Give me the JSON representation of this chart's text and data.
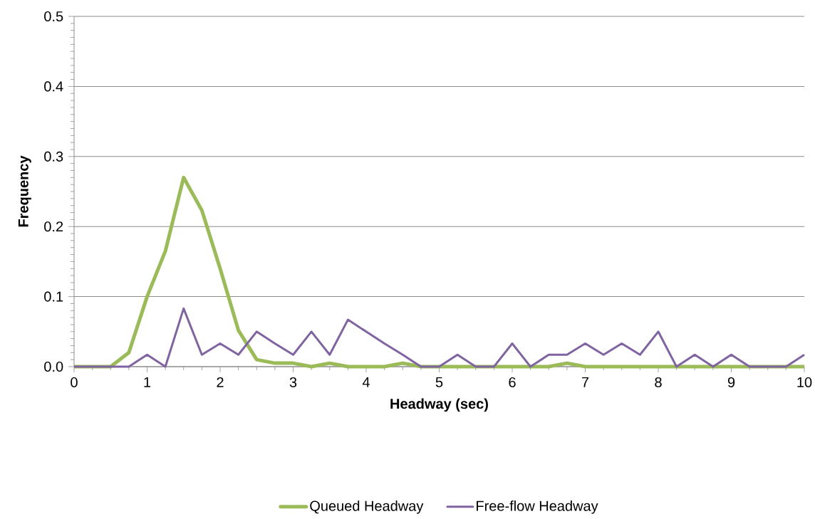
{
  "chart_data": {
    "type": "line",
    "xlabel": "Headway (sec)",
    "ylabel": "Frequency",
    "x": [
      0,
      0.25,
      0.5,
      0.75,
      1,
      1.25,
      1.5,
      1.75,
      2,
      2.25,
      2.5,
      2.75,
      3,
      3.25,
      3.5,
      3.75,
      4,
      4.25,
      4.5,
      4.75,
      5,
      5.25,
      5.5,
      5.75,
      6,
      6.25,
      6.5,
      6.75,
      7,
      7.25,
      7.5,
      7.75,
      8,
      8.25,
      8.5,
      8.75,
      9,
      9.25,
      9.5,
      9.75,
      10
    ],
    "series": [
      {
        "name": "Queued Headway",
        "color": "#9bbb59",
        "values": [
          0,
          0,
          0,
          0.02,
          0.1,
          0.165,
          0.27,
          0.223,
          0.14,
          0.052,
          0.01,
          0.005,
          0.005,
          0,
          0.005,
          0,
          0,
          0,
          0.005,
          0,
          0,
          0,
          0,
          0,
          0,
          0,
          0,
          0.005,
          0,
          0,
          0,
          0,
          0,
          0,
          0,
          0,
          0,
          0,
          0,
          0,
          0
        ]
      },
      {
        "name": "Free-flow Headway",
        "color": "#8064a2",
        "values": [
          0,
          0,
          0,
          0,
          0.017,
          0,
          0.083,
          0.017,
          0.033,
          0.017,
          0.05,
          0.033,
          0.017,
          0.05,
          0.017,
          0.067,
          0.05,
          0.033,
          0.017,
          0,
          0,
          0.017,
          0,
          0,
          0.033,
          0,
          0.017,
          0.017,
          0.033,
          0.017,
          0.033,
          0.017,
          0.05,
          0,
          0.017,
          0,
          0.017,
          0,
          0,
          0,
          0.017
        ]
      }
    ],
    "xlim": [
      0,
      10
    ],
    "ylim": [
      0,
      0.5
    ],
    "xticks": [
      0,
      1,
      2,
      3,
      4,
      5,
      6,
      7,
      8,
      9,
      10
    ],
    "yticks": [
      {
        "value": 0,
        "label": "0.0"
      },
      {
        "value": 0.1,
        "label": "0.1"
      },
      {
        "value": 0.2,
        "label": "0.2"
      },
      {
        "value": 0.3,
        "label": "0.3"
      },
      {
        "value": 0.4,
        "label": "0.4"
      },
      {
        "value": 0.5,
        "label": "0.5"
      }
    ],
    "grid": "y",
    "legend": "bottom"
  }
}
